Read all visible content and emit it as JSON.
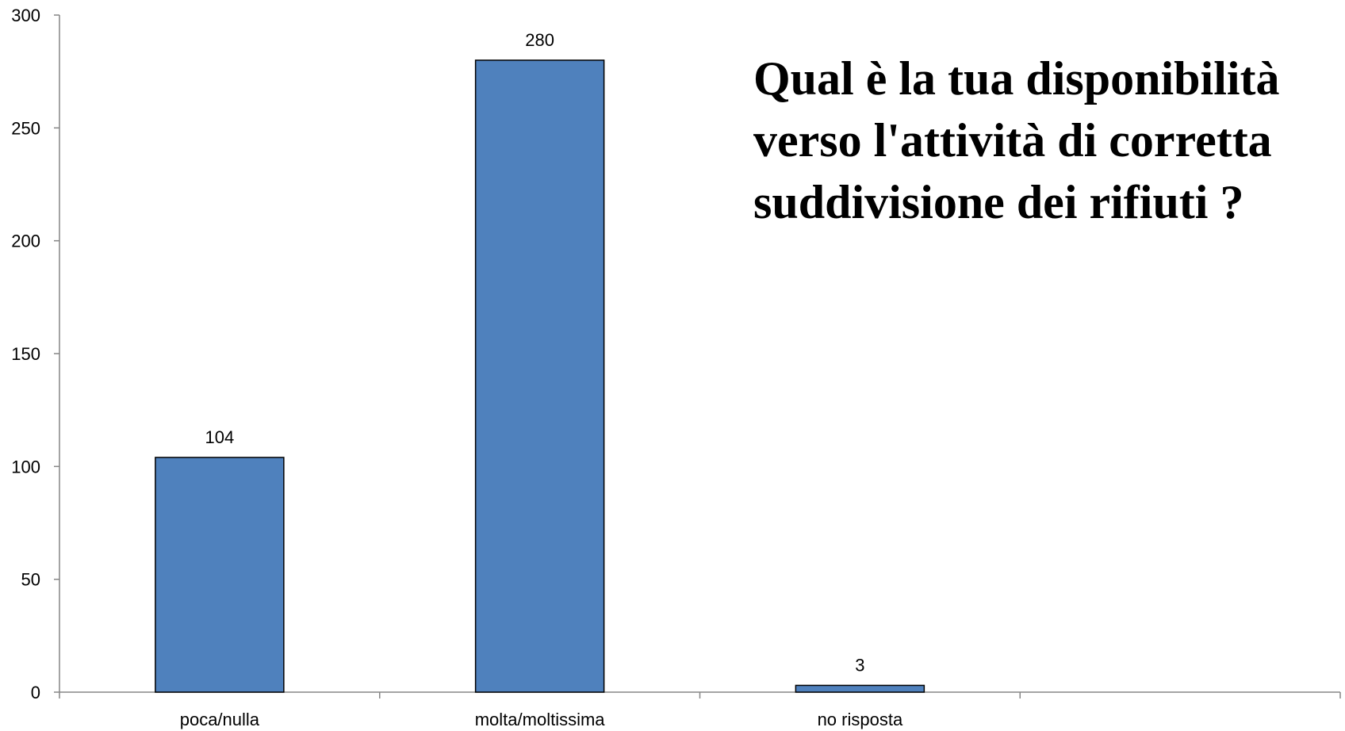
{
  "chart_data": {
    "type": "bar",
    "title": "Qual è la tua disponibilità\nverso l'attività di corretta\nsuddivisione dei rifiuti ?",
    "categories": [
      "poca/nulla",
      "molta/moltissima",
      "no risposta"
    ],
    "values": [
      104,
      280,
      3
    ],
    "data_labels": [
      "104",
      "280",
      "3"
    ],
    "xlabel": "",
    "ylabel": "",
    "ylim": [
      0,
      300
    ],
    "yticks": [
      0,
      50,
      100,
      150,
      200,
      250,
      300
    ],
    "slots": 4,
    "grid": false,
    "legend": "none",
    "colors": {
      "bar_fill": "#4f81bd",
      "bar_stroke": "#000000",
      "axis": "#868686"
    }
  }
}
